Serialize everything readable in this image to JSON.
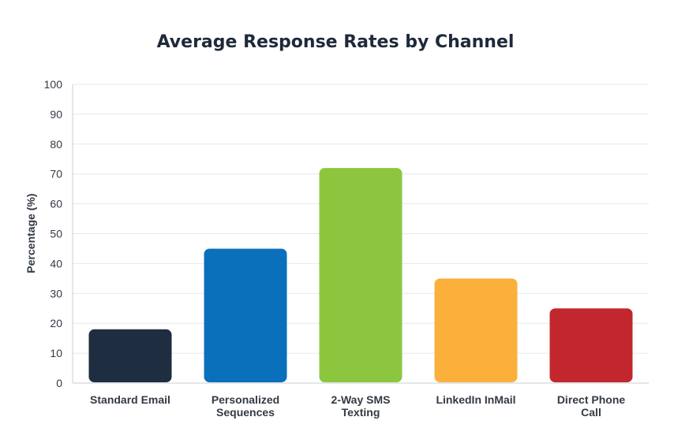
{
  "chart_data": {
    "type": "bar",
    "title": "Average Response Rates by Channel",
    "xlabel": "",
    "ylabel": "Percentage (%)",
    "ylim": [
      0,
      100
    ],
    "yticks": [
      0,
      10,
      20,
      30,
      40,
      50,
      60,
      70,
      80,
      90,
      100
    ],
    "grid": true,
    "legend": "none",
    "categories": [
      [
        "Standard Email"
      ],
      [
        "Personalized",
        "Sequences"
      ],
      [
        "2-Way SMS",
        "Texting"
      ],
      [
        "LinkedIn InMail"
      ],
      [
        "Direct Phone",
        "Call"
      ]
    ],
    "values": [
      18,
      45,
      72,
      35,
      25
    ],
    "colors": [
      "#1e2d40",
      "#0a70bc",
      "#8cc63f",
      "#fbb03b",
      "#c1272d"
    ]
  }
}
